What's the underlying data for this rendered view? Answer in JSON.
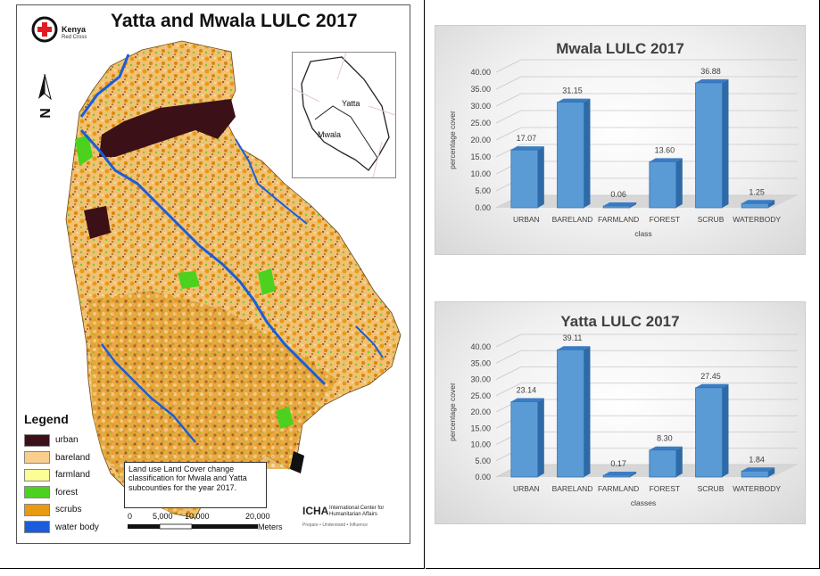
{
  "map": {
    "title": "Yatta and Mwala LULC 2017",
    "org_name": "Kenya",
    "org_sub": "Red Cross",
    "inset_labels": [
      "Yatta",
      "Mwala"
    ],
    "legend_title": "Legend",
    "legend": [
      {
        "label": "urban",
        "color": "#3b1016"
      },
      {
        "label": "bareland",
        "color": "#f8cd8d"
      },
      {
        "label": "farmland",
        "color": "#fdfd96"
      },
      {
        "label": "forest",
        "color": "#4cd21e"
      },
      {
        "label": "scrubs",
        "color": "#e89a12"
      },
      {
        "label": "water body",
        "color": "#1a5ddb"
      }
    ],
    "description": "Land use Land Cover change classification for Mwala and Yatta subcounties for the year 2017.",
    "scale": {
      "ticks": [
        "0",
        "5,000",
        "10,000",
        "20,000"
      ],
      "unit": "Meters"
    },
    "credit_mark": "ICHA",
    "credit_text": "International Center for Humanitarian Affairs",
    "credit_sub": "Prepare • Understand • Influence"
  },
  "chart_data": [
    {
      "type": "bar",
      "title": "Mwala LULC 2017",
      "xlabel": "class",
      "ylabel": "percentage cover",
      "categories": [
        "URBAN",
        "BARELAND",
        "FARMLAND",
        "FOREST",
        "SCRUB",
        "WATERBODY"
      ],
      "values": [
        17.07,
        31.15,
        0.06,
        13.6,
        36.88,
        1.25
      ],
      "value_labels": [
        "17.07",
        "31.15",
        "0.06",
        "13.60",
        "36.88",
        "1.25"
      ],
      "yticks": [
        "0.00",
        "5.00",
        "10.00",
        "15.00",
        "20.00",
        "25.00",
        "30.00",
        "35.00",
        "40.00"
      ],
      "ylim": [
        0,
        40
      ],
      "bar_color": "#5b9bd5"
    },
    {
      "type": "bar",
      "title": "Yatta LULC 2017",
      "xlabel": "classes",
      "ylabel": "percentage cover",
      "categories": [
        "URBAN",
        "BARELAND",
        "FARMLAND",
        "FOREST",
        "SCRUB",
        "WATERBODY"
      ],
      "values": [
        23.14,
        39.11,
        0.17,
        8.3,
        27.45,
        1.84
      ],
      "value_labels": [
        "23.14",
        "39.11",
        "0.17",
        "8.30",
        "27.45",
        "1.84"
      ],
      "yticks": [
        "0.00",
        "5.00",
        "10.00",
        "15.00",
        "20.00",
        "25.00",
        "30.00",
        "35.00",
        "40.00"
      ],
      "ylim": [
        0,
        40
      ],
      "bar_color": "#5b9bd5"
    }
  ]
}
